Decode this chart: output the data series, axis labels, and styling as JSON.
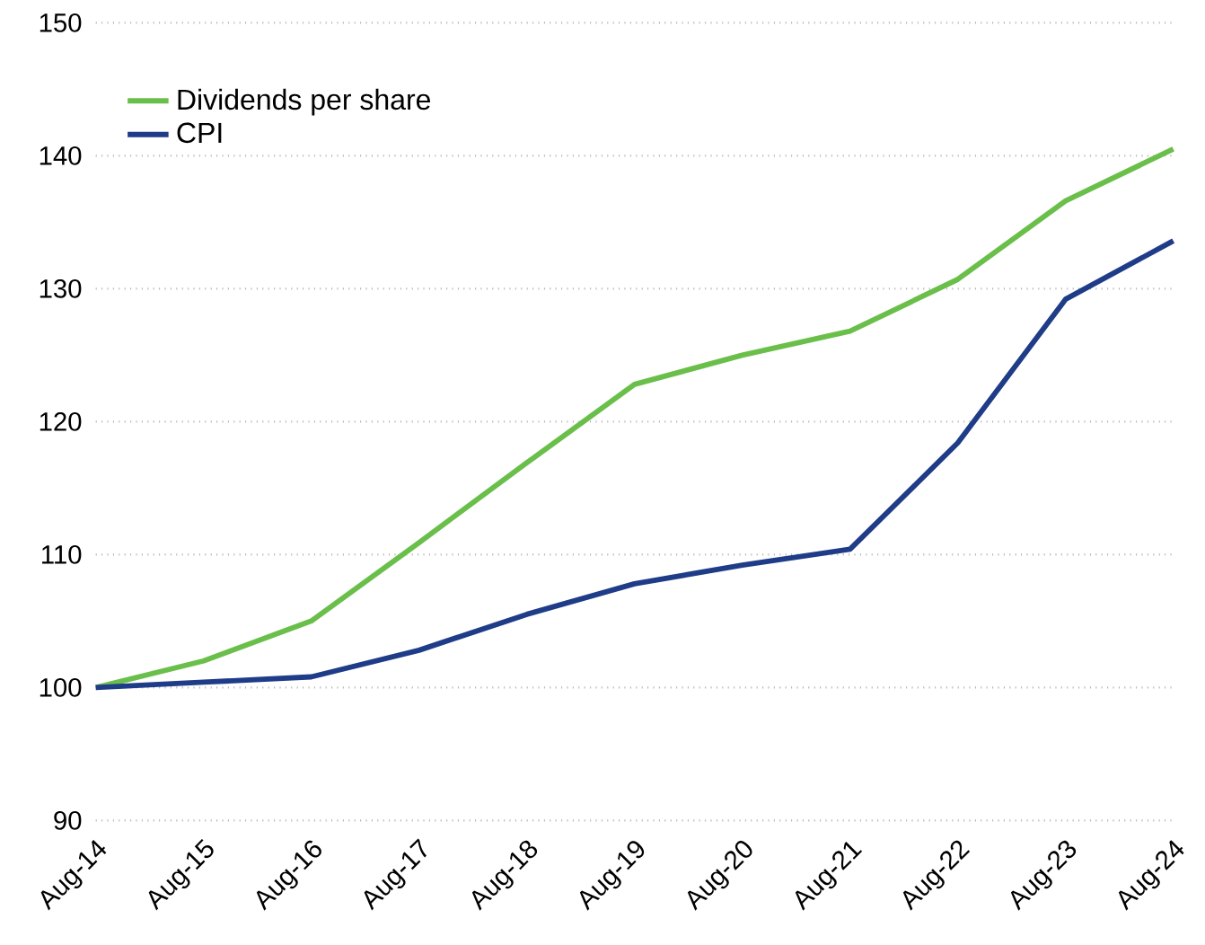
{
  "chart_data": {
    "type": "line",
    "categories": [
      "Aug-14",
      "Aug-15",
      "Aug-16",
      "Aug-17",
      "Aug-18",
      "Aug-19",
      "Aug-20",
      "Aug-21",
      "Aug-22",
      "Aug-23",
      "Aug-24"
    ],
    "series": [
      {
        "name": "Dividends per share",
        "color": "#6abf4b",
        "values": [
          100,
          102.0,
          105.0,
          110.9,
          116.9,
          122.8,
          125.0,
          126.8,
          130.7,
          136.6,
          140.5
        ]
      },
      {
        "name": "CPI",
        "color": "#1f3c88",
        "values": [
          100,
          100.4,
          100.8,
          102.8,
          105.5,
          107.8,
          109.2,
          110.4,
          118.4,
          129.2,
          133.6
        ]
      }
    ],
    "ylim": [
      90,
      150
    ],
    "yticks": [
      90,
      100,
      110,
      120,
      130,
      140,
      150
    ],
    "grid": "y",
    "legend": "top left",
    "marker": "none",
    "line_style": "solid"
  }
}
